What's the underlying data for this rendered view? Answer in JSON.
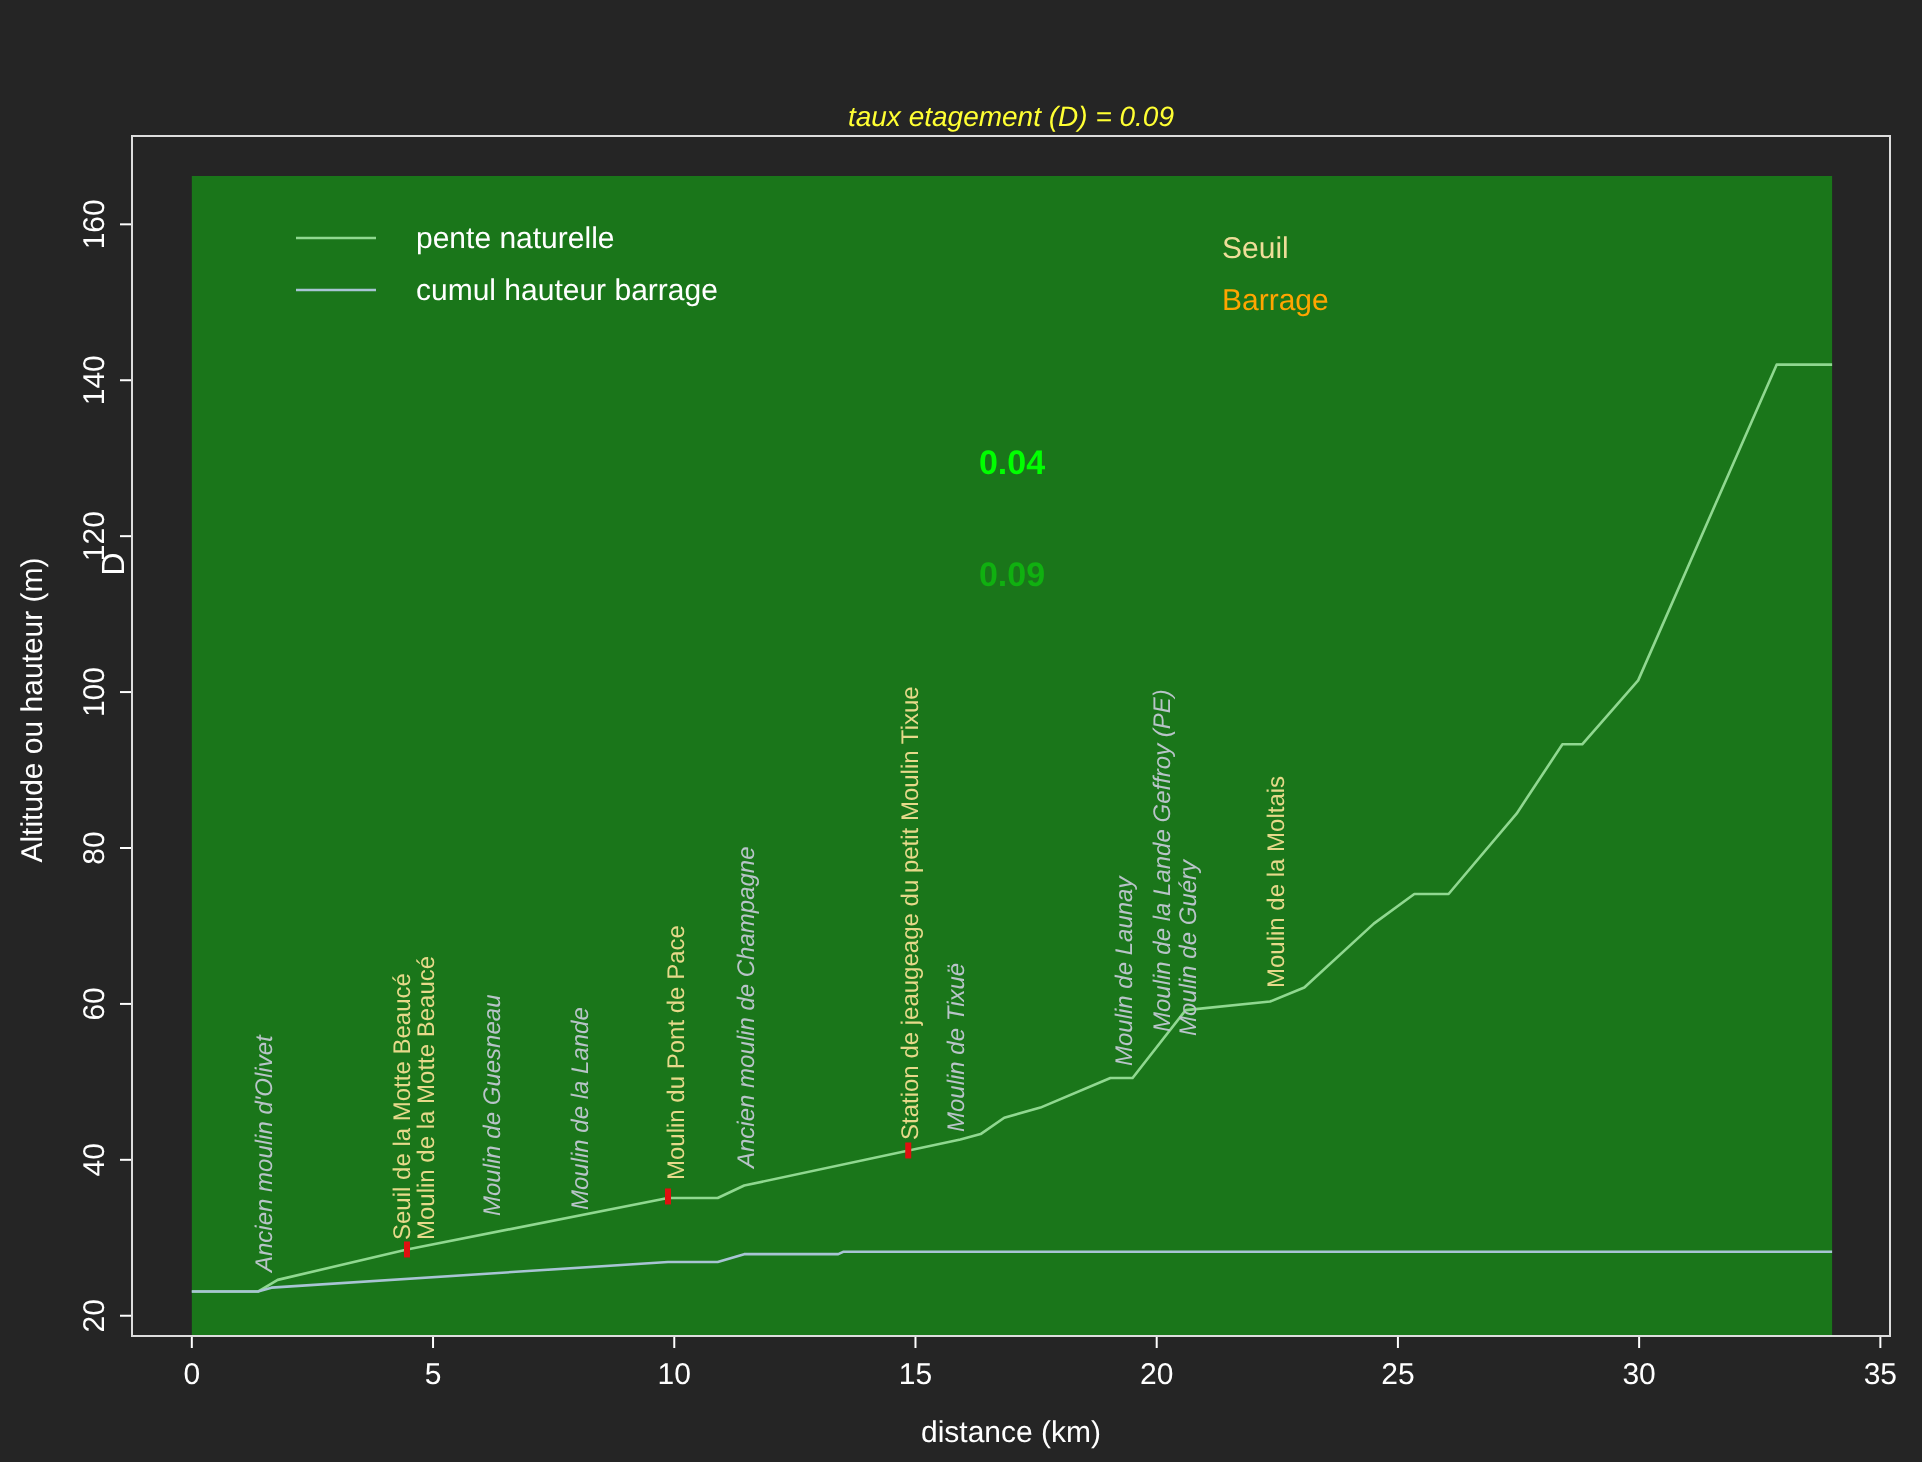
{
  "chart_data": {
    "type": "line",
    "title": "taux etagement (D) = 0.09",
    "xlabel": "distance (km)",
    "ylabel": "Altitude ou hauteur (m)",
    "xlim": [
      -1.24,
      35.2
    ],
    "xticks": [
      0,
      5,
      10,
      15,
      20,
      25,
      30,
      35
    ],
    "ylim": [
      17.4,
      166.2
    ],
    "yticks": [
      20,
      40,
      60,
      80,
      100,
      120,
      140,
      160
    ],
    "grid": false,
    "legend": "top left",
    "line_style": "solid",
    "bands": [
      {
        "axis": "x",
        "from": 0,
        "to": 34,
        "color": "#1a761a"
      }
    ],
    "series": [
      {
        "name": "pente naturelle",
        "color": "#90d890",
        "x": [
          0,
          1.37,
          1.78,
          4.46,
          9.87,
          10.9,
          11.45,
          15.93,
          16.35,
          16.84,
          17.59,
          19.04,
          19.5,
          20.6,
          22.35,
          23.06,
          24.5,
          25.34,
          26.05,
          27.46,
          28.41,
          28.82,
          29.98,
          32.85,
          34
        ],
        "values": [
          23.1,
          23.1,
          24.6,
          28.5,
          35.1,
          35.1,
          36.7,
          42.6,
          43.3,
          45.4,
          46.7,
          50.5,
          50.5,
          59.2,
          60.3,
          62.1,
          70.3,
          74.1,
          74.1,
          84.4,
          93.3,
          93.3,
          101.5,
          142,
          142
        ]
      },
      {
        "name": "cumul hauteur barrage",
        "color": "#a8c4d4",
        "x": [
          0,
          1.37,
          1.65,
          9.87,
          10.9,
          11.45,
          13.4,
          13.5,
          34
        ],
        "values": [
          23.1,
          23.1,
          23.6,
          26.9,
          26.9,
          27.9,
          27.9,
          28.2,
          28.2
        ]
      },
      {
        "type": "scatter",
        "marker": "square",
        "color": "#e01010",
        "x": [
          4.46,
          9.87,
          14.85
        ],
        "values": [
          28.5,
          35.3,
          41.2
        ]
      }
    ],
    "annotations": [
      "Seuil",
      "Barrage",
      "0.04",
      "0.09",
      "D",
      "Ancien moulin d'Olivet",
      "Seuil de la Motte Beaucé",
      "Moulin de la Motte Beaucé",
      "Moulin de Guesneau",
      "Moulin de la Lande",
      "Moulin du Pont de Pace",
      "Ancien moulin de Champagne",
      "Station de jeaugeage du petit Moulin Tixue",
      "Moulin de Tixuë",
      "Moulin de Launay",
      "Moulin de la Lande Geffroy (PE)",
      "Moulin de Guéry",
      "Moulin de la Moltais"
    ]
  }
}
